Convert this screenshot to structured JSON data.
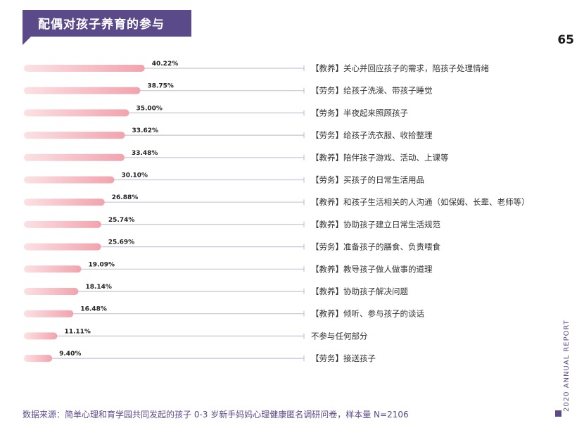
{
  "header": {
    "title": "配偶对孩子养育的参与",
    "page_number": "65",
    "side_label": "2020 ANNUAL REPORT"
  },
  "footer": {
    "source": "数据来源：简单心理和育学园共同发起的孩子 0-3 岁新手妈妈心理健康匿名调研问卷，样本量 N=2106"
  },
  "colors": {
    "brand": "#5b4a8a",
    "bar": "#f2a3ad",
    "bar_light": "#fbe1e4",
    "guide_line": "#c9c2d8"
  },
  "chart_data": {
    "type": "bar",
    "orientation": "horizontal",
    "categories": [
      "【教养】关心并回应孩子的需求，陪孩子处理情绪",
      "【劳务】给孩子洗澡、带孩子睡觉",
      "【劳务】半夜起来照顾孩子",
      "【劳务】给孩子洗衣服、收拾整理",
      "【教养】陪伴孩子游戏、活动、上课等",
      "【劳务】买孩子的日常生活用品",
      "【教养】和孩子生活相关的人沟通（如保姆、长辈、老师等）",
      "【教养】协助孩子建立日常生活规范",
      "【劳务】准备孩子的膳食、负责喂食",
      "【教养】教导孩子做人做事的道理",
      "【教养】协助孩子解决问题",
      "【教养】倾听、参与孩子的谈话",
      "不参与任何部分",
      "【劳务】接送孩子"
    ],
    "values": [
      40.22,
      38.75,
      35.0,
      33.62,
      33.48,
      30.1,
      26.88,
      25.74,
      25.69,
      19.09,
      18.14,
      16.48,
      11.11,
      9.4
    ],
    "value_labels": [
      "40.22%",
      "38.75%",
      "35.00%",
      "33.62%",
      "33.48%",
      "30.10%",
      "26.88%",
      "25.74%",
      "25.69%",
      "19.09%",
      "18.14%",
      "16.48%",
      "11.11%",
      "9.40%"
    ],
    "unit": "%",
    "xlim": [
      0,
      100
    ],
    "grid": false,
    "legend": "none"
  }
}
